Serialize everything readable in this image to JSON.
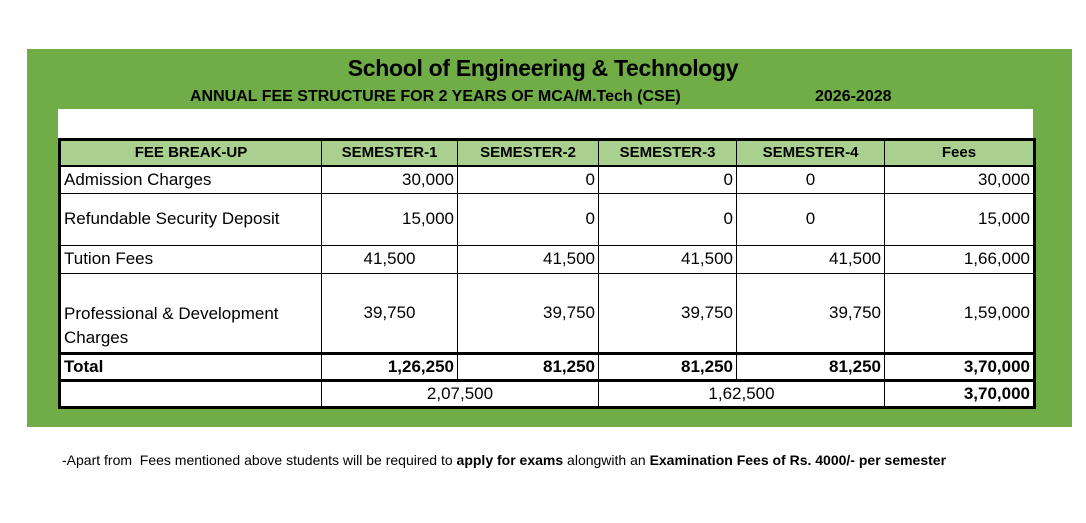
{
  "header": {
    "title": "School of Engineering & Technology",
    "subtitle": "ANNUAL FEE STRUCTURE FOR 2 YEARS OF MCA/M.Tech (CSE)",
    "year": "2026-2028"
  },
  "table": {
    "columns": [
      "FEE BREAK-UP",
      "SEMESTER-1",
      "SEMESTER-2",
      "SEMESTER-3",
      "SEMESTER-4",
      "Fees"
    ],
    "rows": [
      {
        "label": "Admission Charges",
        "values": [
          "30,000",
          "0",
          "0",
          "0",
          "30,000"
        ]
      },
      {
        "label": "Refundable Security Deposit",
        "values": [
          "15,000",
          "0",
          "0",
          "0",
          "15,000"
        ]
      },
      {
        "label": "Tution Fees",
        "values": [
          "41,500",
          "41,500",
          "41,500",
          "41,500",
          "1,66,000"
        ]
      },
      {
        "label": "Professional & Development Charges",
        "values": [
          "39,750",
          "39,750",
          "39,750",
          "39,750",
          "1,59,000"
        ]
      }
    ],
    "total": {
      "label": "Total",
      "values": [
        "1,26,250",
        "81,250",
        "81,250",
        "81,250",
        "3,70,000"
      ]
    },
    "yearly": {
      "year1": "2,07,500",
      "year2": "1,62,500",
      "grand_total": "3,70,000"
    }
  },
  "note": {
    "prefix": "-Apart from  Fees mentioned above students will be required to ",
    "bold1": "apply for exams",
    "middle": " alongwith an ",
    "bold2": "Examination Fees of Rs. 4000/- per semester"
  }
}
